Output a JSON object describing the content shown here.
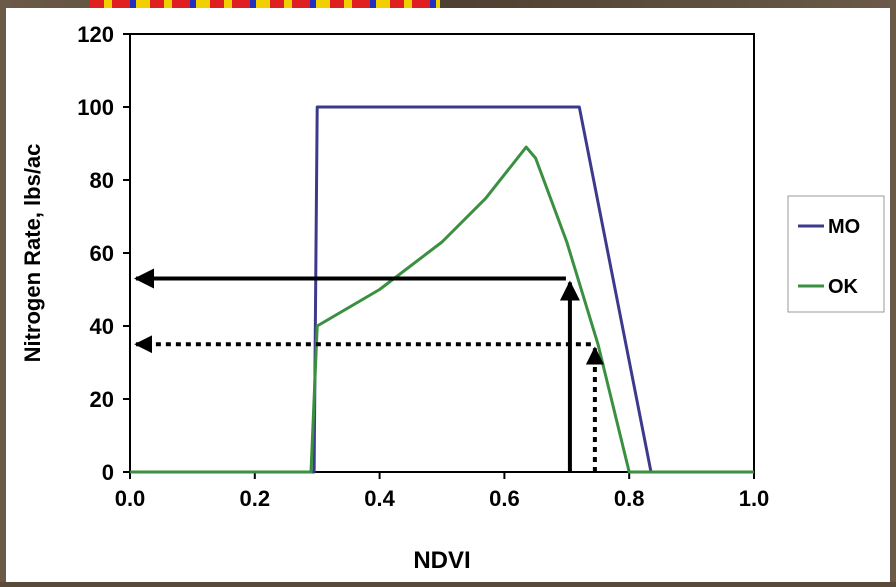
{
  "chart_data": {
    "type": "line",
    "xlabel": "NDVI",
    "ylabel": "Nitrogen Rate, lbs/ac",
    "xlim": [
      0,
      1.0
    ],
    "ylim": [
      0,
      120
    ],
    "x_ticks": [
      "0.0",
      "0.2",
      "0.4",
      "0.6",
      "0.8",
      "1.0"
    ],
    "y_ticks": [
      "0",
      "20",
      "40",
      "60",
      "80",
      "100",
      "120"
    ],
    "grid": false,
    "legend_position": "right",
    "series": [
      {
        "name": "MO",
        "color": "#3c3a8c",
        "x": [
          0,
          0.295,
          0.3,
          0.72,
          0.835,
          1.0
        ],
        "y": [
          0,
          0,
          100,
          100,
          0,
          0
        ]
      },
      {
        "name": "OK",
        "color": "#3a9040",
        "x": [
          0,
          0.29,
          0.3,
          0.4,
          0.5,
          0.57,
          0.635,
          0.65,
          0.7,
          0.75,
          0.8,
          1.0
        ],
        "y": [
          0,
          0,
          40,
          50,
          63,
          75,
          89,
          86,
          63,
          35,
          0,
          0
        ]
      }
    ],
    "annotations": [
      {
        "style": "solid",
        "x": 0.705,
        "y": 53
      },
      {
        "style": "dotted",
        "x": 0.745,
        "y": 35
      }
    ]
  }
}
